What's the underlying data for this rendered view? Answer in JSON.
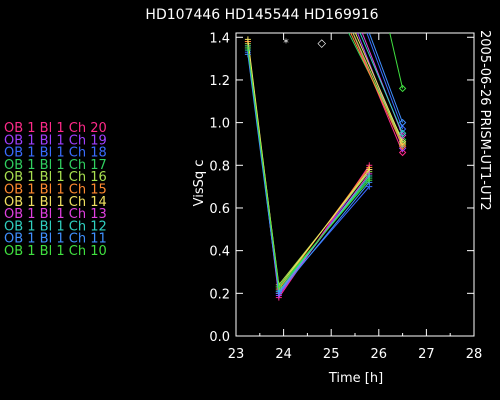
{
  "chart_data": {
    "type": "line",
    "title": "HD107446 HD145544 HD169916",
    "side_label": "2005-06-26 PRISM-UT1-UT2",
    "xlabel": "Time [h]",
    "ylabel": "VisSq c",
    "xlim": [
      23,
      28
    ],
    "ylim": [
      0,
      1.42
    ],
    "xticks": [
      "23",
      "24",
      "25",
      "26",
      "27",
      "28"
    ],
    "yticks": [
      "0.0",
      "0.2",
      "0.4",
      "0.6",
      "0.8",
      "1.0",
      "1.2",
      "1.4"
    ],
    "legend_position": "left",
    "markers": [
      {
        "symbol": "*",
        "x": 24.05,
        "y": 1.38
      },
      {
        "symbol": "◇",
        "x": 24.8,
        "y": 1.38
      }
    ],
    "series": [
      {
        "name": "OB 1 Bl 1 Ch 20",
        "color": "#ff2a8a",
        "points": [
          [
            23.25,
            1.38
          ],
          [
            23.9,
            0.18
          ],
          [
            25.8,
            0.8
          ]
        ],
        "seg2": [
          [
            25.4,
            1.45
          ],
          [
            26.5,
            0.86
          ]
        ]
      },
      {
        "name": "OB 1 Bl 1 Ch 19",
        "color": "#a040ff",
        "points": [
          [
            23.25,
            1.36
          ],
          [
            23.9,
            0.19
          ],
          [
            25.8,
            0.78
          ]
        ],
        "seg2": [
          [
            25.5,
            1.45
          ],
          [
            26.5,
            0.88
          ]
        ]
      },
      {
        "name": "OB 1 Bl 1 Ch 18",
        "color": "#3a6cff",
        "points": [
          [
            23.25,
            1.33
          ],
          [
            23.9,
            0.21
          ],
          [
            25.8,
            0.7
          ]
        ],
        "seg2": [
          [
            25.7,
            1.45
          ],
          [
            26.5,
            0.97
          ]
        ]
      },
      {
        "name": "OB 1 Bl 1 Ch 17",
        "color": "#30d060",
        "points": [
          [
            23.25,
            1.36
          ],
          [
            23.9,
            0.22
          ],
          [
            25.8,
            0.74
          ]
        ],
        "seg2": [
          [
            25.3,
            1.45
          ],
          [
            26.5,
            0.92
          ]
        ]
      },
      {
        "name": "OB 1 Bl 1 Ch 16",
        "color": "#a8e050",
        "points": [
          [
            23.25,
            1.37
          ],
          [
            23.9,
            0.24
          ],
          [
            25.8,
            0.77
          ]
        ],
        "seg2": [
          [
            25.4,
            1.45
          ],
          [
            26.5,
            0.9
          ]
        ]
      },
      {
        "name": "OB 1 Bl 1 Ch 15",
        "color": "#ff8a30",
        "points": [
          [
            23.25,
            1.38
          ],
          [
            23.9,
            0.22
          ],
          [
            25.8,
            0.79
          ]
        ],
        "seg2": [
          [
            25.35,
            1.45
          ],
          [
            26.5,
            0.89
          ]
        ]
      },
      {
        "name": "OB 1 Bl 1 Ch 14",
        "color": "#f0e060",
        "points": [
          [
            23.25,
            1.39
          ],
          [
            23.9,
            0.23
          ],
          [
            25.8,
            0.78
          ]
        ],
        "seg2": [
          [
            25.45,
            1.45
          ],
          [
            26.5,
            0.91
          ]
        ]
      },
      {
        "name": "OB 1 Bl 1 Ch 13",
        "color": "#e040e0",
        "points": [
          [
            23.25,
            1.35
          ],
          [
            23.9,
            0.2
          ],
          [
            25.8,
            0.76
          ]
        ],
        "seg2": [
          [
            25.6,
            1.45
          ],
          [
            26.5,
            0.94
          ]
        ]
      },
      {
        "name": "OB 1 Bl 1 Ch 12",
        "color": "#30d0c0",
        "points": [
          [
            23.25,
            1.34
          ],
          [
            23.9,
            0.21
          ],
          [
            25.8,
            0.75
          ]
        ],
        "seg2": [
          [
            25.55,
            1.45
          ],
          [
            26.5,
            0.95
          ]
        ]
      },
      {
        "name": "OB 1 Bl 1 Ch 11",
        "color": "#4090ff",
        "points": [
          [
            23.25,
            1.32
          ],
          [
            23.9,
            0.2
          ],
          [
            25.8,
            0.72
          ]
        ],
        "seg2": [
          [
            25.75,
            1.45
          ],
          [
            26.5,
            1.0
          ]
        ]
      },
      {
        "name": "OB 1 Bl 1 Ch 10",
        "color": "#40e040",
        "points": [
          [
            23.25,
            1.35
          ],
          [
            23.9,
            0.23
          ],
          [
            25.8,
            0.73
          ]
        ],
        "seg2": [
          [
            26.2,
            1.45
          ],
          [
            26.5,
            1.16
          ]
        ]
      }
    ]
  }
}
